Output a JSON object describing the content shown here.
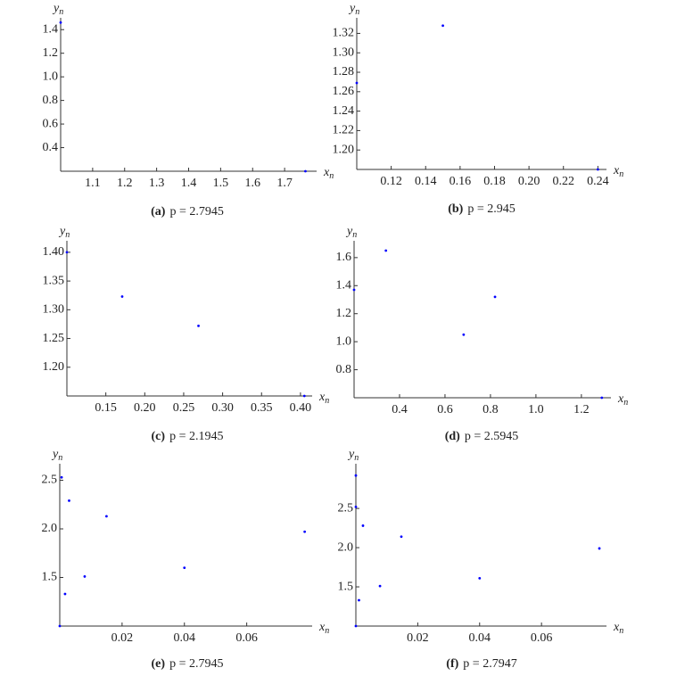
{
  "chart_data": [
    {
      "type": "scatter",
      "caption_label": "(a)",
      "caption": "p = 2.7945",
      "x_label": "x",
      "x_label_subscript": "n",
      "y_label": "y",
      "y_label_subscript": "n",
      "color": "#0000ff",
      "x": [
        1.0,
        1.765
      ],
      "values": [
        1.46,
        0.2
      ],
      "xlim": [
        1.0,
        1.8
      ],
      "ylim": [
        0.2,
        1.5
      ],
      "xticks": [
        1.1,
        1.2,
        1.3,
        1.4,
        1.5,
        1.6,
        1.7
      ],
      "yticks": [
        0.4,
        0.6,
        0.8,
        {
          "value": 1.0,
          "label": "1.0"
        },
        1.2,
        1.4
      ]
    },
    {
      "type": "scatter",
      "caption_label": "(b)",
      "caption": "p = 2.945",
      "x_label": "x",
      "x_label_subscript": "n",
      "y_label": "y",
      "y_label_subscript": "n",
      "color": "#0000ff",
      "x": [
        0.15,
        0.1,
        0.24
      ],
      "values": [
        1.328,
        1.269,
        1.18
      ],
      "xlim": [
        0.1,
        0.245
      ],
      "ylim": [
        1.18,
        1.336
      ],
      "xticks": [
        0.12,
        0.14,
        0.16,
        0.18,
        {
          "value": 0.2,
          "label": "0.20"
        },
        0.22,
        0.24
      ],
      "yticks": [
        {
          "value": 1.2,
          "label": "1.20"
        },
        1.22,
        1.24,
        1.26,
        1.28,
        {
          "value": 1.3,
          "label": "1.30"
        },
        1.32
      ]
    },
    {
      "type": "scatter",
      "caption_label": "(c)",
      "caption": "p = 2.1945",
      "x_label": "x",
      "x_label_subscript": "n",
      "y_label": "y",
      "y_label_subscript": "n",
      "color": "#0000ff",
      "x": [
        0.1,
        0.171,
        0.269,
        0.405
      ],
      "values": [
        1.4,
        1.323,
        1.272,
        1.15
      ],
      "xlim": [
        0.1,
        0.415
      ],
      "ylim": [
        1.15,
        1.42
      ],
      "xticks": [
        0.15,
        {
          "value": 0.2,
          "label": "0.20"
        },
        0.25,
        {
          "value": 0.3,
          "label": "0.30"
        },
        0.35,
        {
          "value": 0.4,
          "label": "0.40"
        }
      ],
      "yticks": [
        {
          "value": 1.2,
          "label": "1.20"
        },
        1.25,
        {
          "value": 1.3,
          "label": "1.30"
        },
        1.35,
        {
          "value": 1.4,
          "label": "1.40"
        }
      ]
    },
    {
      "type": "scatter",
      "caption_label": "(d)",
      "caption": "p = 2.5945",
      "x_label": "x",
      "x_label_subscript": "n",
      "y_label": "y",
      "y_label_subscript": "n",
      "color": "#0000ff",
      "x": [
        0.2,
        0.34,
        0.682,
        0.82,
        1.29
      ],
      "values": [
        1.37,
        1.65,
        1.05,
        1.32,
        0.6
      ],
      "xlim": [
        0.2,
        1.33
      ],
      "ylim": [
        0.6,
        1.72
      ],
      "xticks": [
        0.4,
        0.6,
        0.8,
        {
          "value": 1.0,
          "label": "1.0"
        },
        1.2
      ],
      "yticks": [
        0.8,
        {
          "value": 1.0,
          "label": "1.0"
        },
        1.2,
        1.4,
        1.6
      ]
    },
    {
      "type": "scatter",
      "caption_label": "(e)",
      "caption": "p = 2.7945",
      "x_label": "x",
      "x_label_subscript": "n",
      "y_label": "y",
      "y_label_subscript": "n",
      "color": "#0000ff",
      "x": [
        0.0006,
        0.003,
        0.0017,
        0.008,
        0.015,
        0.04,
        0.0786,
        0.0
      ],
      "values": [
        2.53,
        2.29,
        1.33,
        1.51,
        2.13,
        1.6,
        1.97,
        1.0
      ],
      "xlim": [
        0.0,
        0.081
      ],
      "ylim": [
        1.0,
        2.67
      ],
      "xticks": [
        0.02,
        0.04,
        0.06
      ],
      "yticks": [
        1.5,
        {
          "value": 2.0,
          "label": "2.0"
        },
        2.5
      ]
    },
    {
      "type": "scatter",
      "caption_label": "(f)",
      "caption": "p = 2.7947",
      "x_label": "x",
      "x_label_subscript": "n",
      "y_label": "y",
      "y_label_subscript": "n",
      "color": "#0000ff",
      "x": [
        0.0,
        0.0,
        0.0023,
        0.001,
        0.0078,
        0.0147,
        0.04,
        0.0787,
        0.0
      ],
      "values": [
        2.92,
        2.52,
        2.28,
        1.33,
        1.51,
        2.14,
        1.61,
        1.99,
        1.0
      ],
      "xlim": [
        0.0,
        0.081
      ],
      "ylim": [
        1.0,
        3.07
      ],
      "xticks": [
        0.02,
        0.04,
        0.06
      ],
      "yticks": [
        1.5,
        {
          "value": 2.0,
          "label": "2.0"
        },
        2.5
      ]
    }
  ]
}
